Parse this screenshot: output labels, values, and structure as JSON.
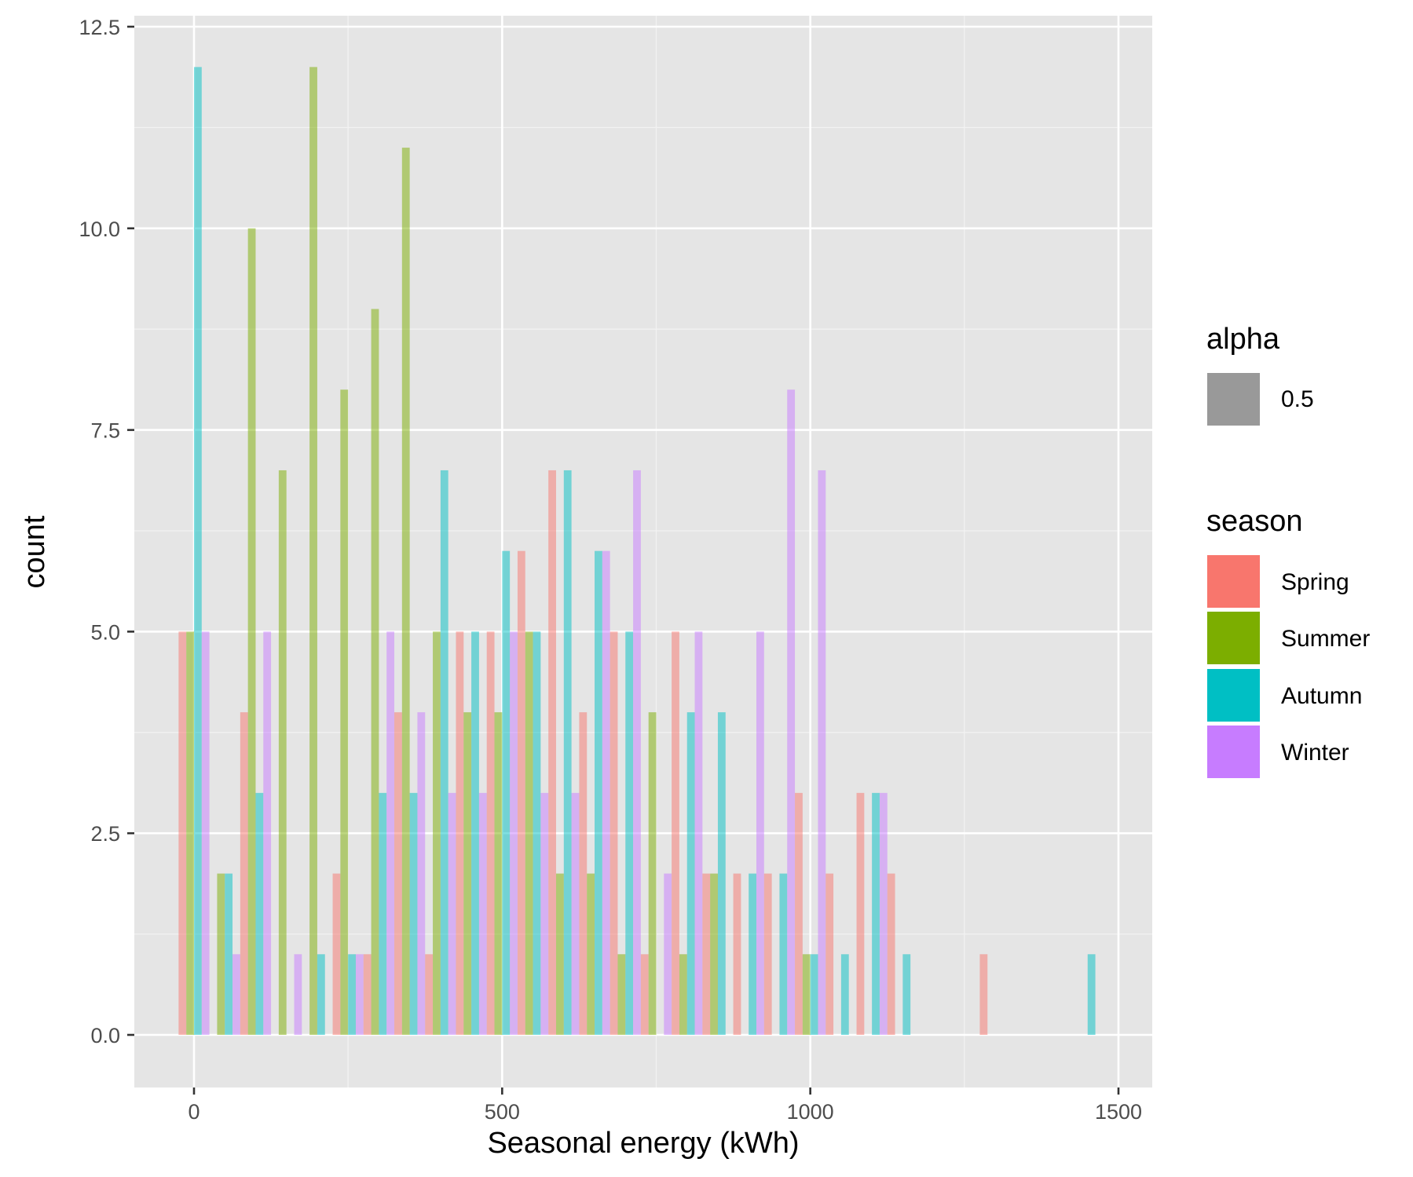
{
  "chart_data": {
    "type": "bar",
    "xlabel": "Seasonal energy (kWh)",
    "ylabel": "count",
    "xlim": [
      -100,
      1550
    ],
    "ylim": [
      -0.65,
      12.6
    ],
    "x_ticks": [
      0,
      500,
      1000,
      1500
    ],
    "x_tick_labels": [
      "0",
      "500",
      "1000",
      "1500"
    ],
    "x_minor_ticks": [
      250,
      750,
      1250
    ],
    "y_ticks": [
      0,
      2.5,
      5,
      7.5,
      10,
      12.5
    ],
    "y_tick_labels": [
      "0.0",
      "2.5",
      "5.0",
      "7.5",
      "10.0",
      "12.5"
    ],
    "y_minor_ticks": [
      1.25,
      3.75,
      6.25,
      8.75,
      11.25
    ],
    "grid": true,
    "panel_background": "#e5e5e5",
    "bin_width": 50,
    "opacity": 0.5,
    "bins": [
      0,
      50,
      100,
      150,
      200,
      250,
      300,
      350,
      400,
      450,
      500,
      550,
      600,
      650,
      700,
      750,
      800,
      850,
      900,
      950,
      1000,
      1050,
      1100,
      1150,
      1200,
      1250,
      1300,
      1350,
      1400,
      1450
    ],
    "series": [
      {
        "name": "Spring",
        "color": "#F8766D",
        "values": [
          5,
          0,
          4,
          0,
          0,
          2,
          1,
          4,
          1,
          5,
          5,
          6,
          7,
          4,
          5,
          1,
          5,
          2,
          2,
          2,
          3,
          2,
          3,
          2,
          0,
          0,
          1,
          0,
          0,
          0
        ]
      },
      {
        "name": "Summer",
        "color": "#7CAE00",
        "values": [
          5,
          2,
          10,
          7,
          12,
          8,
          9,
          11,
          5,
          4,
          4,
          5,
          2,
          2,
          1,
          4,
          1,
          2,
          0,
          0,
          1,
          0,
          0,
          0,
          0,
          0,
          0,
          0,
          0,
          0
        ]
      },
      {
        "name": "Autumn",
        "color": "#00BFC4",
        "values": [
          12,
          2,
          3,
          0,
          1,
          1,
          3,
          3,
          7,
          5,
          6,
          5,
          7,
          6,
          5,
          0,
          4,
          4,
          2,
          2,
          1,
          1,
          3,
          1,
          0,
          0,
          0,
          0,
          0,
          1
        ]
      },
      {
        "name": "Winter",
        "color": "#C77CFF",
        "values": [
          5,
          1,
          5,
          1,
          0,
          1,
          5,
          4,
          3,
          3,
          5,
          3,
          3,
          6,
          7,
          2,
          5,
          0,
          5,
          8,
          7,
          0,
          3,
          0,
          0,
          0,
          0,
          0,
          0,
          0
        ]
      }
    ]
  },
  "legend": {
    "alpha_title": "alpha",
    "alpha_label": "0.5",
    "alpha_color": "#999999",
    "season_title": "season",
    "entries": [
      {
        "label": "Spring",
        "color": "#F8766D"
      },
      {
        "label": "Summer",
        "color": "#7CAE00"
      },
      {
        "label": "Autumn",
        "color": "#00BFC4"
      },
      {
        "label": "Winter",
        "color": "#C77CFF"
      }
    ]
  }
}
